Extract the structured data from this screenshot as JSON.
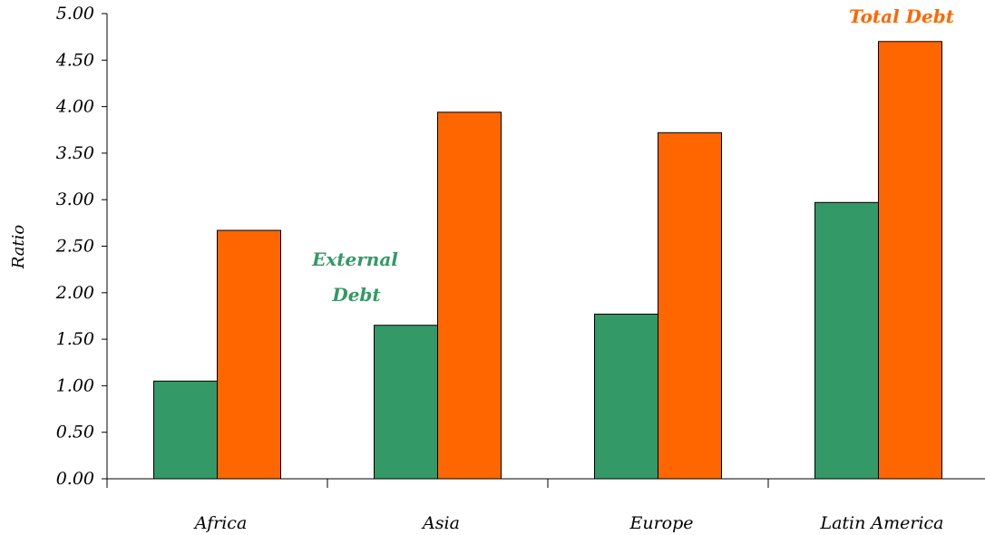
{
  "chart_data": {
    "type": "bar",
    "categories": [
      "Africa",
      "Asia",
      "Europe",
      "Latin America"
    ],
    "series": [
      {
        "name": "External Debt",
        "values": [
          1.05,
          1.65,
          1.77,
          2.97
        ],
        "color": "#339966"
      },
      {
        "name": "Total Debt",
        "values": [
          2.67,
          3.94,
          3.72,
          4.7
        ],
        "color": "#ff6600"
      }
    ],
    "ylabel": "Ratio",
    "ylim": [
      0,
      5
    ],
    "yticks": [
      "0.00",
      "0.50",
      "1.00",
      "1.50",
      "2.00",
      "2.50",
      "3.00",
      "3.50",
      "4.00",
      "4.50",
      "5.00"
    ],
    "grid": false,
    "annotations": [
      {
        "lines": [
          "External",
          "Debt"
        ],
        "color": "#339966"
      },
      {
        "lines": [
          "Total Debt"
        ],
        "color": "#ff6600"
      }
    ]
  }
}
